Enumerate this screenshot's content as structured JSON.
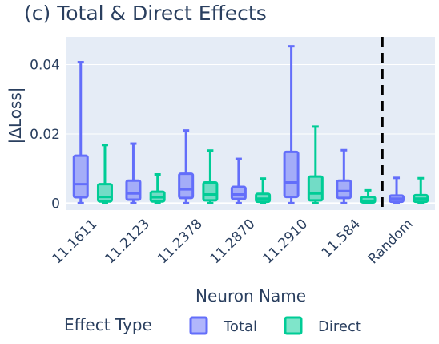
{
  "chart_data": {
    "type": "box",
    "title": "(c) Total & Direct Effects",
    "xlabel": "Neuron Name",
    "ylabel": "|ΔLoss|",
    "ylim": [
      -0.002,
      0.048
    ],
    "yticks": [
      {
        "value": 0,
        "label": "0"
      },
      {
        "value": 0.02,
        "label": "0.02"
      },
      {
        "value": 0.04,
        "label": "0.04"
      }
    ],
    "categories": [
      "11.1611",
      "11.2123",
      "11.2378",
      "11.2870",
      "11.2910",
      "11.584",
      "Random"
    ],
    "legend": {
      "title": "Effect Type",
      "placement": "bottom"
    },
    "reference_line": {
      "between": [
        "11.584",
        "Random"
      ],
      "style": "dashed",
      "color": "#000000"
    },
    "grid": true,
    "series": [
      {
        "name": "Total",
        "color": "#636efa",
        "boxes": [
          {
            "min": 0.0,
            "q1": 0.0017,
            "median": 0.0055,
            "q3": 0.0137,
            "max": 0.0407
          },
          {
            "min": 0.0,
            "q1": 0.001,
            "median": 0.0028,
            "q3": 0.0065,
            "max": 0.0172
          },
          {
            "min": 0.0,
            "q1": 0.0015,
            "median": 0.004,
            "q3": 0.0085,
            "max": 0.021
          },
          {
            "min": 0.0,
            "q1": 0.0012,
            "median": 0.0025,
            "q3": 0.0047,
            "max": 0.0128
          },
          {
            "min": 0.0,
            "q1": 0.0018,
            "median": 0.006,
            "q3": 0.0148,
            "max": 0.0453
          },
          {
            "min": 0.0,
            "q1": 0.0015,
            "median": 0.0035,
            "q3": 0.0065,
            "max": 0.0153
          },
          {
            "min": 0.0,
            "q1": 0.0004,
            "median": 0.0013,
            "q3": 0.0022,
            "max": 0.0073
          }
        ]
      },
      {
        "name": "Direct",
        "color": "#00cc96",
        "boxes": [
          {
            "min": 0.0,
            "q1": 0.0005,
            "median": 0.0018,
            "q3": 0.0055,
            "max": 0.0168
          },
          {
            "min": 0.0,
            "q1": 0.0005,
            "median": 0.0017,
            "q3": 0.0033,
            "max": 0.0083
          },
          {
            "min": 0.0,
            "q1": 0.0008,
            "median": 0.0025,
            "q3": 0.006,
            "max": 0.0152
          },
          {
            "min": 0.0,
            "q1": 0.0004,
            "median": 0.0013,
            "q3": 0.0027,
            "max": 0.0071
          },
          {
            "min": 0.0,
            "q1": 0.0008,
            "median": 0.0028,
            "q3": 0.0077,
            "max": 0.0221
          },
          {
            "min": 0.0,
            "q1": 0.0002,
            "median": 0.0007,
            "q3": 0.0018,
            "max": 0.0037
          },
          {
            "min": 0.0,
            "q1": 0.0004,
            "median": 0.0013,
            "q3": 0.0023,
            "max": 0.0072
          }
        ]
      }
    ]
  }
}
